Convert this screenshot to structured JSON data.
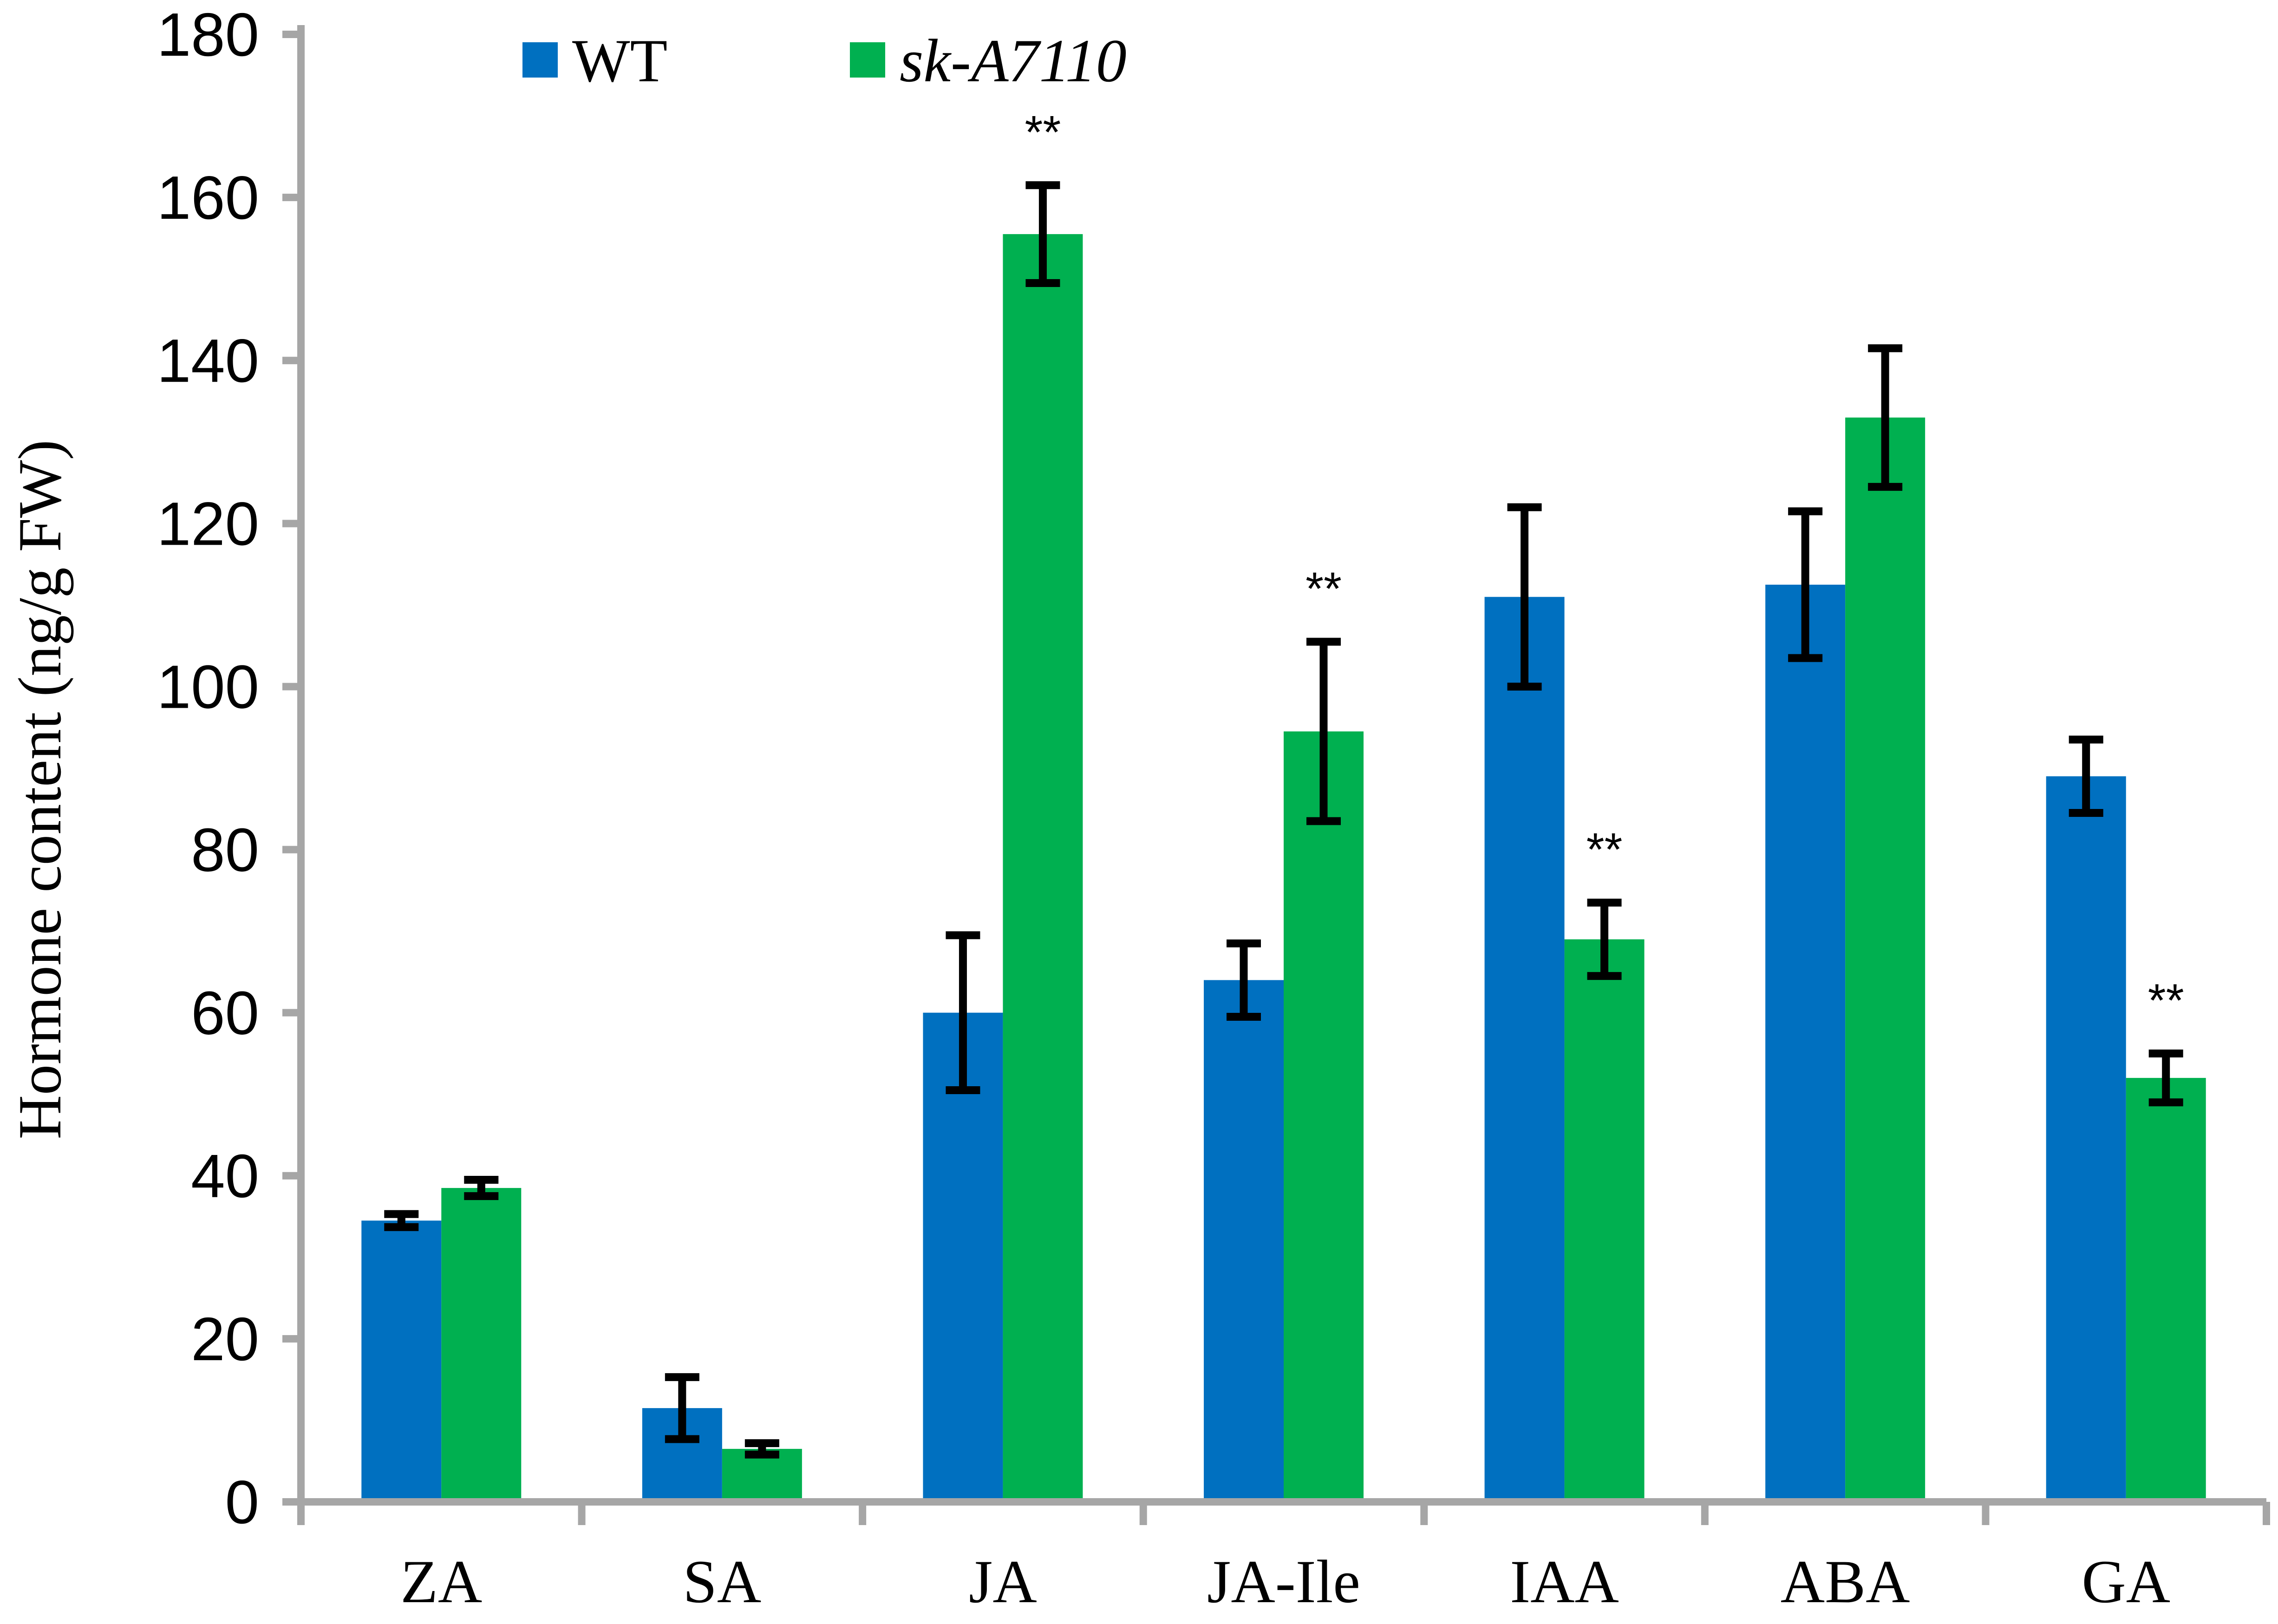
{
  "chart_data": {
    "type": "bar",
    "title": "",
    "xlabel": "",
    "ylabel": "Hormone content  (ng/g FW)",
    "ylim": [
      0,
      180
    ],
    "yticks": [
      0,
      20,
      40,
      60,
      80,
      100,
      120,
      140,
      160,
      180
    ],
    "grid": false,
    "legend_position": "top",
    "categories": [
      "ZA",
      "SA",
      "JA",
      "JA-Ile",
      "IAA",
      "ABA",
      "GA"
    ],
    "series": [
      {
        "name": "WT",
        "color": "#0070C0",
        "values": [
          34.5,
          11.5,
          60,
          64,
          111,
          112.5,
          89
        ],
        "errors": [
          0.8,
          3.8,
          9.5,
          4.5,
          11,
          9,
          4.5
        ],
        "significance": [
          "",
          "",
          "",
          "",
          "",
          "",
          ""
        ]
      },
      {
        "name": "sk-A7110",
        "color": "#00B050",
        "values": [
          38.5,
          6.5,
          155.5,
          94.5,
          69,
          133,
          52
        ],
        "errors": [
          1.0,
          0.7,
          6,
          11,
          4.5,
          8.5,
          3
        ],
        "significance": [
          "",
          "",
          "**",
          "**",
          "**",
          "",
          "**"
        ]
      }
    ]
  }
}
